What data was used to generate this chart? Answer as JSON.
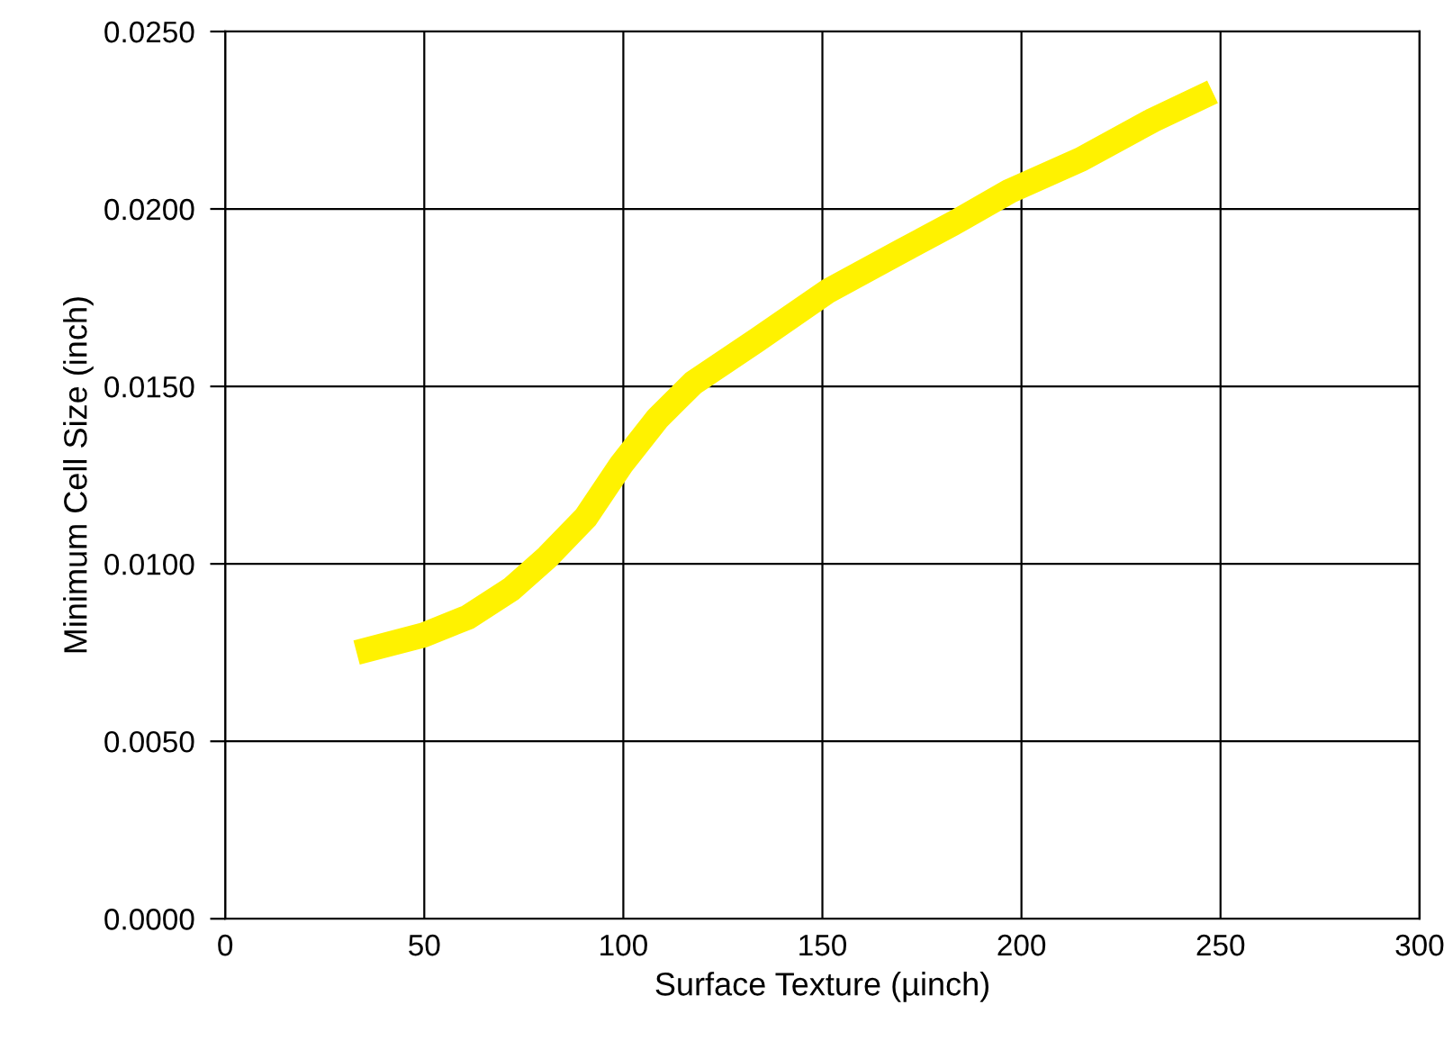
{
  "chart_data": {
    "type": "line",
    "xlabel": "Surface Texture (µinch)",
    "ylabel": "Minimum Cell Size (inch)",
    "xlim": [
      0,
      300
    ],
    "ylim": [
      0,
      0.025
    ],
    "xticks": [
      0,
      50,
      100,
      150,
      200,
      250,
      300
    ],
    "yticks": [
      {
        "value": 0,
        "label": "0.0000"
      },
      {
        "value": 0.005,
        "label": "0.0050"
      },
      {
        "value": 0.01,
        "label": "0.0100"
      },
      {
        "value": 0.015,
        "label": "0.0150"
      },
      {
        "value": 0.02,
        "label": "0.0200"
      },
      {
        "value": 0.025,
        "label": "0.0250"
      }
    ],
    "grid": true,
    "marker": "none",
    "line_style": "solid",
    "series": [
      {
        "color": "#fff200",
        "x": [
          33,
          50,
          61,
          72,
          81,
          90.5,
          99.5,
          108.6,
          117.6,
          133.5,
          151.6,
          169.7,
          183,
          197,
          215,
          233,
          248
        ],
        "values": [
          0.0075,
          0.008,
          0.0085,
          0.0093,
          0.0102,
          0.0113,
          0.0128,
          0.0141,
          0.0151,
          0.0163,
          0.0177,
          0.0188,
          0.0196,
          0.0205,
          0.0214,
          0.0225,
          0.0233
        ]
      }
    ]
  }
}
